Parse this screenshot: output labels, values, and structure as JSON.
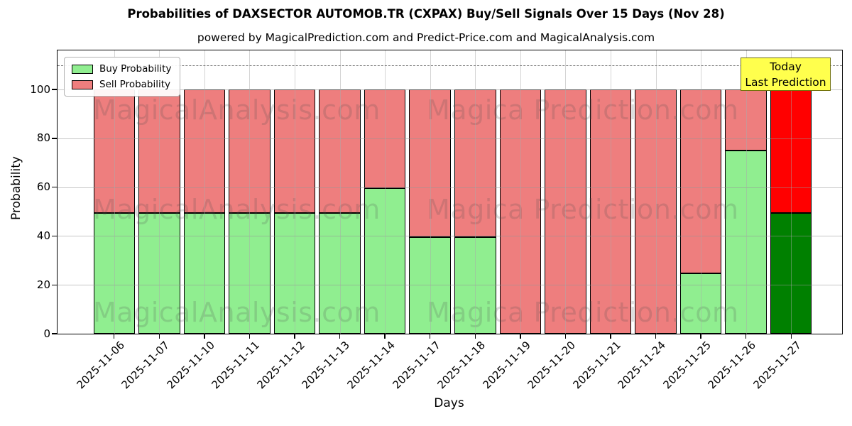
{
  "header": {
    "title": "Probabilities of DAXSECTOR AUTOMOB.TR (CXPAX) Buy/Sell Signals Over 15 Days (Nov 28)",
    "subtitle": "powered by MagicalPrediction.com and Predict-Price.com and MagicalAnalysis.com"
  },
  "legend": {
    "items": [
      {
        "label": "Buy Probability",
        "color": "#90ee90"
      },
      {
        "label": "Sell Probability",
        "color": "#ee7e7e"
      }
    ]
  },
  "annotation_box": {
    "line1": "Today",
    "line2": "Last Prediction",
    "bg": "#ffff4d",
    "border": "#6f6f0a"
  },
  "watermark": {
    "left_text": "MagicalAnalysis.com",
    "right_text": "Magica Prediction.com"
  },
  "chart_data": {
    "type": "bar",
    "stacked": true,
    "title": "Probabilities of DAXSECTOR AUTOMOB.TR (CXPAX) Buy/Sell Signals Over 15 Days (Nov 28)",
    "xlabel": "Days",
    "ylabel": "Probability",
    "categories": [
      "2025-11-06",
      "2025-11-07",
      "2025-11-10",
      "2025-11-11",
      "2025-11-12",
      "2025-11-13",
      "2025-11-14",
      "2025-11-17",
      "2025-11-18",
      "2025-11-19",
      "2025-11-20",
      "2025-11-21",
      "2025-11-24",
      "2025-11-25",
      "2025-11-26",
      "2025-11-27"
    ],
    "series": [
      {
        "name": "Buy Probability",
        "color": "#90ee90",
        "values": [
          49.5,
          49.5,
          49.5,
          49.5,
          49.5,
          49.5,
          59.5,
          39.5,
          39.5,
          0,
          0,
          0,
          0,
          24.75,
          75,
          49.5
        ]
      },
      {
        "name": "Sell Probability",
        "color": "#ee7e7e",
        "values": [
          50.5,
          50.5,
          50.5,
          50.5,
          50.5,
          50.5,
          40.5,
          60.5,
          60.5,
          100,
          100,
          100,
          100,
          75.25,
          25,
          50.5
        ]
      }
    ],
    "highlight_last_bar": {
      "index": 15,
      "buy_color": "#008000",
      "sell_color": "#ff0000"
    },
    "bar_edge_color": "#000000",
    "yticks": [
      0,
      20,
      40,
      60,
      80,
      100
    ],
    "ylim": [
      0,
      116
    ],
    "dashed_line_y": 110,
    "grid": true,
    "legend_position": "upper left"
  }
}
